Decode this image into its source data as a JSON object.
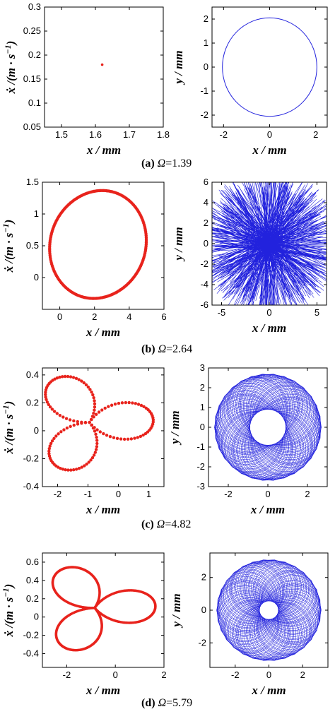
{
  "colors": {
    "poincare": "#e8231c",
    "orbit": "#2222dd",
    "axis": "#000000"
  },
  "captions": [
    {
      "label": "(a)",
      "symbol": "Ω",
      "value": "=1.39"
    },
    {
      "label": "(b)",
      "symbol": "Ω",
      "value": "=2.64"
    },
    {
      "label": "(c)",
      "symbol": "Ω",
      "value": "=4.82"
    },
    {
      "label": "(d)",
      "symbol": "Ω",
      "value": "=5.79"
    }
  ],
  "labels": {
    "x": "x / mm",
    "xdot": "ẋ /(m · s",
    "xdot_exp": "−1",
    "xdot_close": ")",
    "y": "y / mm"
  },
  "chart_data": [
    {
      "id": "a-left",
      "type": "scatter",
      "panel": "Poincaré map",
      "shape": "point",
      "xlabel": "x / mm",
      "ylabel": "ẋ /(m · s−1)",
      "xlim": [
        1.45,
        1.8
      ],
      "ylim": [
        0.05,
        0.3
      ],
      "xticks": [
        "1.5",
        "1.6",
        "1.7",
        "1.8"
      ],
      "yticks": [
        "0.05",
        "0.1",
        "0.15",
        "0.2",
        "0.25",
        "0.3"
      ],
      "points": [
        [
          1.62,
          0.18
        ]
      ]
    },
    {
      "id": "a-right",
      "type": "line",
      "panel": "orbit",
      "shape": "circle",
      "xlabel": "x / mm",
      "ylabel": "y / mm",
      "xlim": [
        -2.5,
        2.5
      ],
      "ylim": [
        -2.5,
        2.5
      ],
      "xticks": [
        "-2",
        "0",
        "2"
      ],
      "yticks": [
        "-2",
        "-1",
        "0",
        "1",
        "2"
      ],
      "params": {
        "cx": 0,
        "cy": 0,
        "r": 2.05
      }
    },
    {
      "id": "b-left",
      "type": "scatter",
      "panel": "Poincaré map",
      "shape": "closed-loop",
      "xlabel": "x / mm",
      "ylabel": "ẋ /(m · s−1)",
      "xlim": [
        -1,
        6
      ],
      "ylim": [
        -0.5,
        1.5
      ],
      "xticks": [
        "0",
        "2",
        "4",
        "6"
      ],
      "yticks": [
        "0",
        "0.5",
        "1",
        "1.5"
      ],
      "params": {
        "cx": 2.2,
        "cy": 0.52,
        "rx": 2.7,
        "ry": 0.87
      }
    },
    {
      "id": "b-right",
      "type": "line",
      "panel": "orbit",
      "shape": "dense-radial",
      "xlabel": "x / mm",
      "ylabel": "y / mm",
      "xlim": [
        -6,
        6
      ],
      "ylim": [
        -6,
        6
      ],
      "xticks": [
        "-5",
        "0",
        "5"
      ],
      "yticks": [
        "-6",
        "-4",
        "-2",
        "0",
        "2",
        "4",
        "6"
      ],
      "params": {
        "r": 6
      }
    },
    {
      "id": "c-left",
      "type": "scatter",
      "panel": "Poincaré map",
      "shape": "three-lobe",
      "xlabel": "x / mm",
      "ylabel": "ẋ /(m · s−1)",
      "xlim": [
        -2.5,
        1.5
      ],
      "ylim": [
        -0.4,
        0.45
      ],
      "xticks": [
        "-2",
        "-1",
        "0",
        "1"
      ],
      "yticks": [
        "-0.4",
        "-0.2",
        "0",
        "0.2",
        "0.4"
      ],
      "params": {
        "cx": -0.95,
        "cy": 0.06,
        "ax": 2.1,
        "ay": 0.37
      }
    },
    {
      "id": "c-right",
      "type": "line",
      "panel": "orbit",
      "shape": "annulus",
      "xlabel": "x / mm",
      "ylabel": "y / mm",
      "xlim": [
        -3,
        3
      ],
      "ylim": [
        -3,
        3
      ],
      "xticks": [
        "-2",
        "0",
        "2"
      ],
      "yticks": [
        "-3",
        "-2",
        "-1",
        "0",
        "1",
        "2",
        "3"
      ],
      "params": {
        "r_inner": 0.9,
        "r_outer": 2.7
      }
    },
    {
      "id": "d-left",
      "type": "scatter",
      "panel": "Poincaré map",
      "shape": "three-lobe",
      "xlabel": "x / mm",
      "ylabel": "ẋ /(m · s−1)",
      "xlim": [
        -3,
        2
      ],
      "ylim": [
        -0.55,
        0.7
      ],
      "xticks": [
        "-2",
        "0",
        "2"
      ],
      "yticks": [
        "-0.4",
        "-0.2",
        "0",
        "0.2",
        "0.4",
        "0.6"
      ],
      "params": {
        "cx": -0.85,
        "cy": 0.1,
        "ax": 2.5,
        "ay": 0.5
      }
    },
    {
      "id": "d-right",
      "type": "line",
      "panel": "orbit",
      "shape": "annulus",
      "xlabel": "x / mm",
      "ylabel": "y / mm",
      "xlim": [
        -3.5,
        3.5
      ],
      "ylim": [
        -3.5,
        3.5
      ],
      "xticks": [
        "-2",
        "0",
        "2"
      ],
      "yticks": [
        "-2",
        "0",
        "2"
      ],
      "params": {
        "r_inner": 0.55,
        "r_outer": 3.1
      }
    }
  ]
}
